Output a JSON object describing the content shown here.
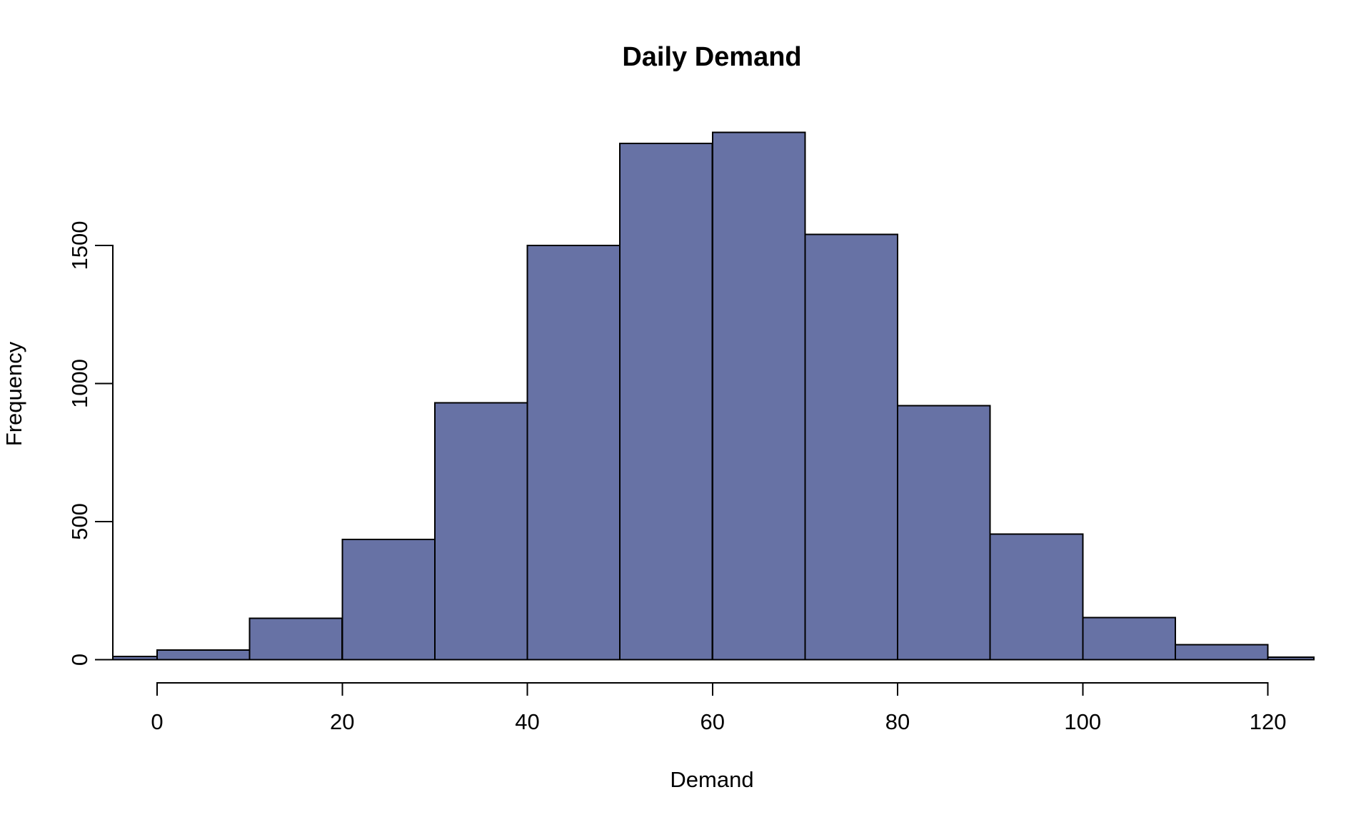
{
  "chart_data": {
    "type": "bar",
    "subtype": "histogram",
    "title": "Daily Demand",
    "xlabel": "Demand",
    "ylabel": "Frequency",
    "bin_width": 10,
    "bin_edges": [
      -10,
      0,
      10,
      20,
      30,
      40,
      50,
      60,
      70,
      80,
      90,
      100,
      110,
      120,
      130
    ],
    "counts": [
      11,
      35,
      150,
      435,
      930,
      1500,
      1870,
      1910,
      1540,
      920,
      455,
      152,
      54,
      9
    ],
    "x_ticks": [
      0,
      20,
      40,
      60,
      80,
      100,
      120
    ],
    "x_tick_labels": [
      "0",
      "20",
      "40",
      "60",
      "80",
      "100",
      "120"
    ],
    "y_ticks": [
      0,
      500,
      1000,
      1500
    ],
    "y_tick_labels": [
      "0",
      "500",
      "1000",
      "1500"
    ],
    "xlim": [
      -4.8,
      124.8
    ],
    "ylim": [
      0,
      1910
    ],
    "grid": "off",
    "legend": "none",
    "bar_fill_color": "#6772A5",
    "bar_border_color": "#000000",
    "axis_color": "#000000",
    "text_color": "#000000",
    "background_color": "#FFFFFF"
  }
}
